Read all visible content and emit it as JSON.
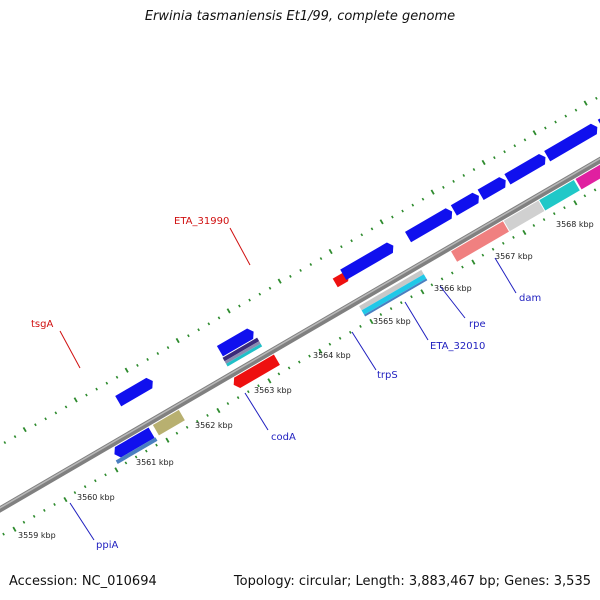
{
  "title": "Erwinia tasmaniensis Et1/99, complete genome",
  "footer": {
    "accession": "Accession: NC_010694",
    "summary": "Topology: circular; Length: 3,883,467 bp; Genes: 3,535"
  },
  "colors": {
    "background": "#ffffff",
    "backbone": "#808080",
    "tick": "#2e8b2e",
    "gene_label_blue": "#1f1fbf",
    "gene_label_red": "#d01010",
    "cds_blue": "#1010ee",
    "cds_red": "#ee1010"
  },
  "scale_ticks": [
    "3559 kbp",
    "3560 kbp",
    "3561 kbp",
    "3562 kbp",
    "3563 kbp",
    "3564 kbp",
    "3565 kbp",
    "3566 kbp",
    "3567 kbp",
    "3568 kbp"
  ],
  "gene_labels": [
    {
      "text": "tsgA",
      "color": "red"
    },
    {
      "text": "ETA_31990",
      "color": "red"
    },
    {
      "text": "ppiA",
      "color": "blue"
    },
    {
      "text": "codA",
      "color": "blue"
    },
    {
      "text": "trpS",
      "color": "blue"
    },
    {
      "text": "ETA_32010",
      "color": "blue"
    },
    {
      "text": "rpe",
      "color": "blue"
    },
    {
      "text": "dam",
      "color": "blue"
    }
  ]
}
